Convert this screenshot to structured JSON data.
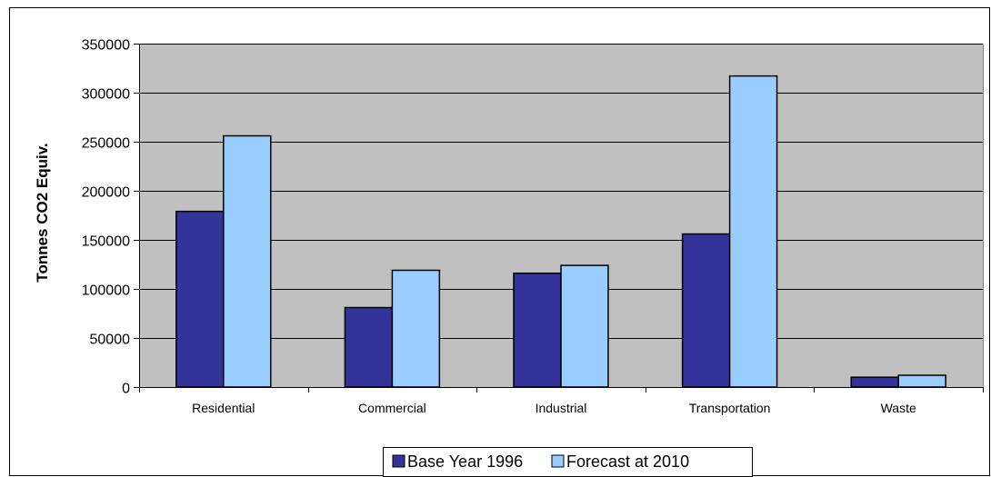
{
  "chart_data": {
    "type": "bar",
    "title": "",
    "xlabel": "",
    "ylabel": "Tonnes CO2 Equiv.",
    "ylim": [
      0,
      350000
    ],
    "yticks": [
      "0",
      "50000",
      "100000",
      "150000",
      "200000",
      "250000",
      "300000",
      "350000"
    ],
    "categories": [
      "Residential",
      "Commercial",
      "Industrial",
      "Transportation",
      "Waste"
    ],
    "series": [
      {
        "name": "Base Year 1996",
        "color": "#333399",
        "values": [
          179000,
          81000,
          116000,
          156000,
          10000
        ]
      },
      {
        "name": "Forecast at 2010",
        "color": "#99CCFF",
        "values": [
          256000,
          119000,
          124000,
          317000,
          12000
        ]
      }
    ],
    "plot_background": "#C0C0C0",
    "grid": true,
    "legend_position": "bottom"
  }
}
